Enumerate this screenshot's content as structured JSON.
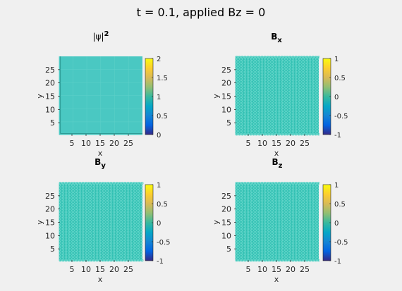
{
  "figure_title": "t = 0.1, applied Bz = 0",
  "chart_data": [
    {
      "type": "heatmap",
      "title_parts": [
        {
          "text": "|ψ|",
          "style": "normal"
        },
        {
          "text": "2",
          "style": "sup"
        }
      ],
      "xlabel": "x",
      "ylabel": "y",
      "xlim": [
        0,
        30
      ],
      "ylim": [
        0,
        30
      ],
      "xticks": [
        5,
        10,
        15,
        20,
        25
      ],
      "yticks": [
        5,
        10,
        15,
        20,
        25
      ],
      "clim": [
        0,
        2
      ],
      "cbticks": [
        "0",
        "0.5",
        "1",
        "1.5",
        "2"
      ],
      "fill_value": 1,
      "fill_color": "#4ac8c2",
      "pattern": "solid"
    },
    {
      "type": "heatmap",
      "title_parts": [
        {
          "text": "B",
          "style": "bold"
        },
        {
          "text": "x",
          "style": "sub"
        }
      ],
      "xlabel": "x",
      "ylabel": "y",
      "xlim": [
        0,
        30
      ],
      "ylim": [
        0,
        30
      ],
      "xticks": [
        5,
        10,
        15,
        20,
        25
      ],
      "yticks": [
        5,
        10,
        15,
        20,
        25
      ],
      "clim": [
        -1,
        1
      ],
      "cbticks": [
        "-1",
        "-0.5",
        "0",
        "0.5",
        "1"
      ],
      "fill_value": 0,
      "fill_color": "#2fbfb2",
      "pattern": "markers"
    },
    {
      "type": "heatmap",
      "title_parts": [
        {
          "text": "B",
          "style": "bold"
        },
        {
          "text": "y",
          "style": "sub"
        }
      ],
      "xlabel": "x",
      "ylabel": "y",
      "xlim": [
        0,
        30
      ],
      "ylim": [
        0,
        30
      ],
      "xticks": [
        5,
        10,
        15,
        20,
        25
      ],
      "yticks": [
        5,
        10,
        15,
        20,
        25
      ],
      "clim": [
        -1,
        1
      ],
      "cbticks": [
        "-1",
        "-0.5",
        "0",
        "0.5",
        "1"
      ],
      "fill_value": 0,
      "fill_color": "#2fbfb2",
      "pattern": "markers"
    },
    {
      "type": "heatmap",
      "title_parts": [
        {
          "text": "B",
          "style": "bold"
        },
        {
          "text": "z",
          "style": "sub"
        }
      ],
      "xlabel": "x",
      "ylabel": "y",
      "xlim": [
        0,
        30
      ],
      "ylim": [
        0,
        30
      ],
      "xticks": [
        5,
        10,
        15,
        20,
        25
      ],
      "yticks": [
        5,
        10,
        15,
        20,
        25
      ],
      "clim": [
        -1,
        1
      ],
      "cbticks": [
        "-1",
        "-0.5",
        "0",
        "0.5",
        "1"
      ],
      "fill_value": 0,
      "fill_color": "#2fbfb2",
      "pattern": "markers"
    }
  ]
}
